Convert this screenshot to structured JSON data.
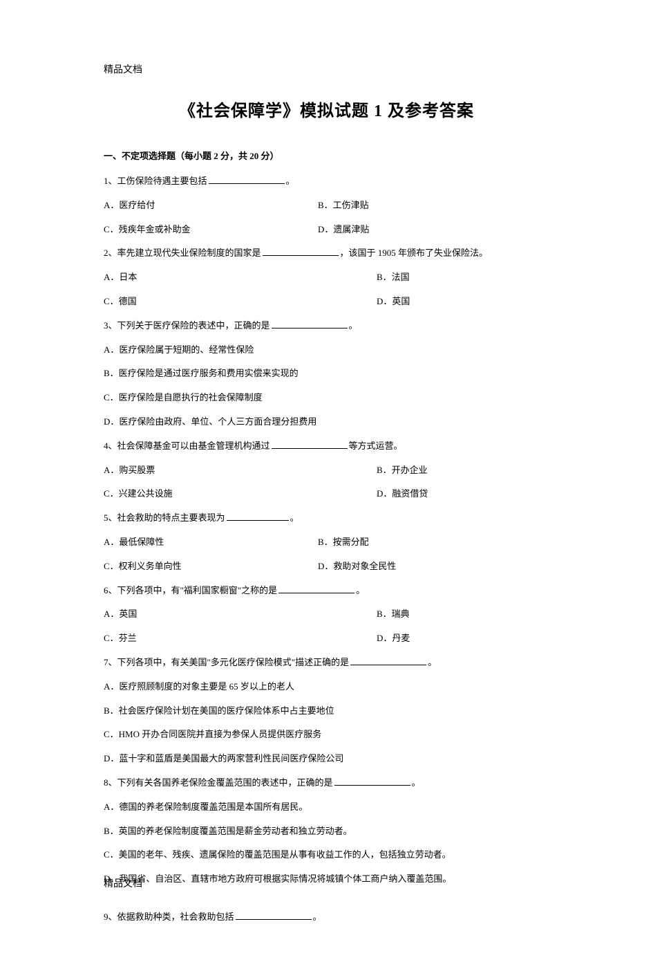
{
  "header": "精品文档",
  "footer": "精品文档",
  "title": "《社会保障学》模拟试题 1 及参考答案",
  "section1": {
    "heading": "一、不定项选择题（每小题 2 分，共 20 分）"
  },
  "q1": {
    "stem_prefix": "1、工伤保险待遇主要包括",
    "stem_suffix": "。",
    "a": "A．医疗给付",
    "b": "B．工伤津贴",
    "c": "C．残疾年金或补助金",
    "d": "D．遗属津贴"
  },
  "q2": {
    "stem_prefix": "2、率先建立现代失业保险制度的国家是",
    "stem_suffix": "，该国于 1905 年颁布了失业保险法。",
    "a": "A．日本",
    "b": "B．法国",
    "c": "C．德国",
    "d": "D．英国"
  },
  "q3": {
    "stem_prefix": "3、下列关于医疗保险的表述中，正确的是",
    "stem_suffix": "。",
    "a": "A．医疗保险属于短期的、经常性保险",
    "b": "B．医疗保险是通过医疗服务和费用实偿来实现的",
    "c": "C．医疗保险是自愿执行的社会保障制度",
    "d": "D．医疗保险由政府、单位、个人三方面合理分担费用"
  },
  "q4": {
    "stem_prefix": "4、社会保障基金可以由基金管理机构通过",
    "stem_suffix": "等方式运营。",
    "a": "A．购买股票",
    "b": "B．开办企业",
    "c": "C．兴建公共设施",
    "d": "D．融资借贷"
  },
  "q5": {
    "stem_prefix": "5、社会救助的特点主要表现为",
    "stem_suffix": "。",
    "a": "A．最低保障性",
    "b": "B．按需分配",
    "c": "C．权利义务单向性",
    "d": "D．救助对象全民性"
  },
  "q6": {
    "stem_prefix": "6、下列各项中，有\"福利国家橱窗\"之称的是",
    "stem_suffix": "。",
    "a": "A．英国",
    "b": "B．瑞典",
    "c": "C．芬兰",
    "d": "D．丹麦"
  },
  "q7": {
    "stem_prefix": "7、下列各项中，有关美国\"多元化医疗保险模式\"描述正确的是",
    "stem_suffix": "。",
    "a": "A．医疗照顾制度的对象主要是 65 岁以上的老人",
    "b": "B．社会医疗保险计划在美国的医疗保险体系中占主要地位",
    "c": "C．HMO 开办合同医院并直接为参保人员提供医疗服务",
    "d": "D．蓝十字和蓝盾是美国最大的两家营利性民间医疗保险公司"
  },
  "q8": {
    "stem_prefix": "8、下列有关各国养老保险金覆盖范围的表述中，正确的是",
    "stem_suffix": "。",
    "a": "A．德国的养老保险制度覆盖范围是本国所有居民。",
    "b": "B．英国的养老保险制度覆盖范围是薪金劳动者和独立劳动者。",
    "c": "C．美国的老年、残疾、遗属保险的覆盖范围是从事有收益工作的人，包括独立劳动者。",
    "d": "D．我国省、自治区、直辖市地方政府可根据实际情况将城镇个体工商户纳入覆盖范围。"
  },
  "q9": {
    "stem_prefix": "9、依据救助种类，社会救助包括",
    "stem_suffix": "。"
  }
}
